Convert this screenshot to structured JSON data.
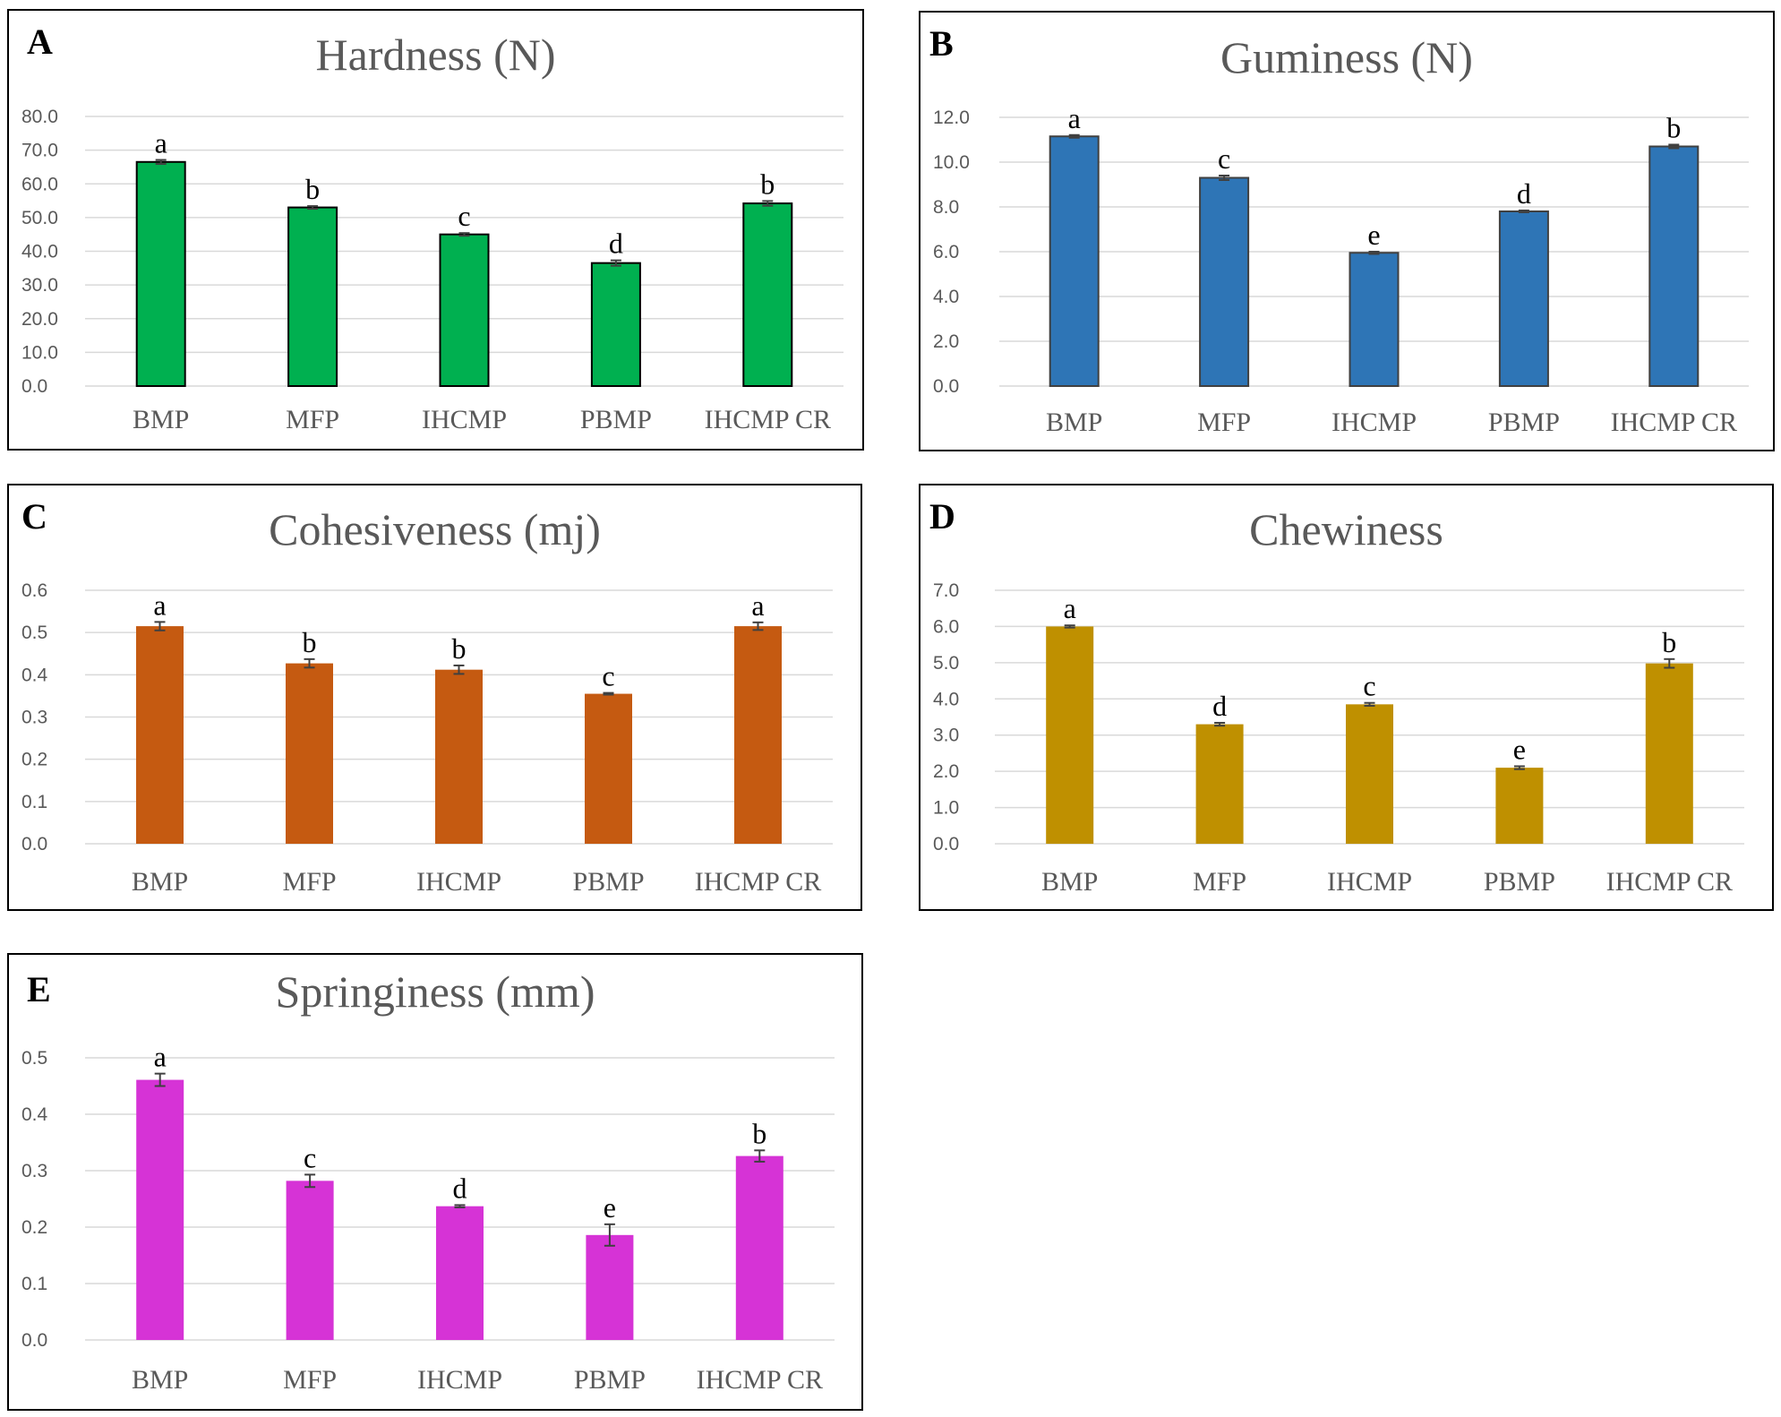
{
  "chart_data": [
    {
      "id": "A",
      "type": "bar",
      "title": "Hardness (N)",
      "categories": [
        "BMP",
        "MFP",
        "IHCMP",
        "PBMP",
        "IHCMP CR"
      ],
      "values": [
        66.5,
        53.0,
        45.0,
        36.5,
        54.2
      ],
      "errors": [
        0.6,
        0.4,
        0.4,
        0.8,
        0.7
      ],
      "significance": [
        "a",
        "b",
        "c",
        "d",
        "b"
      ],
      "ylim": [
        0,
        80
      ],
      "ytick_step": 10,
      "ytick_labels": [
        "0.0",
        "10.0",
        "20.0",
        "30.0",
        "40.0",
        "50.0",
        "60.0",
        "70.0",
        "80.0"
      ],
      "color": "#00B050",
      "edge_color": "#000000",
      "xlabel": "",
      "ylabel": "",
      "grid": true
    },
    {
      "id": "B",
      "type": "bar",
      "title": "Guminess (N)",
      "categories": [
        "BMP",
        "MFP",
        "IHCMP",
        "PBMP",
        "IHCMP CR"
      ],
      "values": [
        11.15,
        9.3,
        5.95,
        7.8,
        10.7
      ],
      "errors": [
        0.06,
        0.1,
        0.05,
        0.04,
        0.08
      ],
      "significance": [
        "a",
        "c",
        "e",
        "d",
        "b"
      ],
      "ylim": [
        0,
        12
      ],
      "ytick_step": 2,
      "ytick_labels": [
        "0.0",
        "2.0",
        "4.0",
        "6.0",
        "8.0",
        "10.0",
        "12.0"
      ],
      "color": "#2E75B6",
      "edge_color": "#404040",
      "xlabel": "",
      "ylabel": "",
      "grid": true
    },
    {
      "id": "C",
      "type": "bar",
      "title": "Cohesiveness (mj)",
      "categories": [
        "BMP",
        "MFP",
        "IHCMP",
        "PBMP",
        "IHCMP CR"
      ],
      "values": [
        0.515,
        0.427,
        0.412,
        0.355,
        0.515
      ],
      "errors": [
        0.01,
        0.01,
        0.01,
        0.002,
        0.009
      ],
      "significance": [
        "a",
        "b",
        "b",
        "c",
        "a"
      ],
      "ylim": [
        0,
        0.6
      ],
      "ytick_step": 0.1,
      "ytick_labels": [
        "0.0",
        "0.1",
        "0.2",
        "0.3",
        "0.4",
        "0.5",
        "0.6"
      ],
      "color": "#C55A11",
      "edge_color": "none",
      "xlabel": "",
      "ylabel": "",
      "grid": true
    },
    {
      "id": "D",
      "type": "bar",
      "title": "Chewiness",
      "categories": [
        "BMP",
        "MFP",
        "IHCMP",
        "PBMP",
        "IHCMP CR"
      ],
      "values": [
        6.0,
        3.3,
        3.85,
        2.1,
        4.98
      ],
      "errors": [
        0.03,
        0.04,
        0.04,
        0.04,
        0.12
      ],
      "significance": [
        "a",
        "d",
        "c",
        "e",
        "b"
      ],
      "ylim": [
        0,
        7
      ],
      "ytick_step": 1,
      "ytick_labels": [
        "0.0",
        "1.0",
        "2.0",
        "3.0",
        "4.0",
        "5.0",
        "6.0",
        "7.0"
      ],
      "color": "#BF9000",
      "edge_color": "none",
      "xlabel": "",
      "ylabel": "",
      "grid": true
    },
    {
      "id": "E",
      "type": "bar",
      "title": "Springiness (mm)",
      "categories": [
        "BMP",
        "MFP",
        "IHCMP",
        "PBMP",
        "IHCMP CR"
      ],
      "values": [
        0.461,
        0.282,
        0.237,
        0.186,
        0.326
      ],
      "errors": [
        0.011,
        0.011,
        0.002,
        0.019,
        0.01
      ],
      "significance": [
        "a",
        "c",
        "d",
        "e",
        "b"
      ],
      "ylim": [
        0,
        0.5
      ],
      "ytick_step": 0.1,
      "ytick_labels": [
        "0.0",
        "0.1",
        "0.2",
        "0.3",
        "0.4",
        "0.5"
      ],
      "color": "#D633D6",
      "edge_color": "none",
      "xlabel": "",
      "ylabel": "",
      "grid": true
    }
  ]
}
